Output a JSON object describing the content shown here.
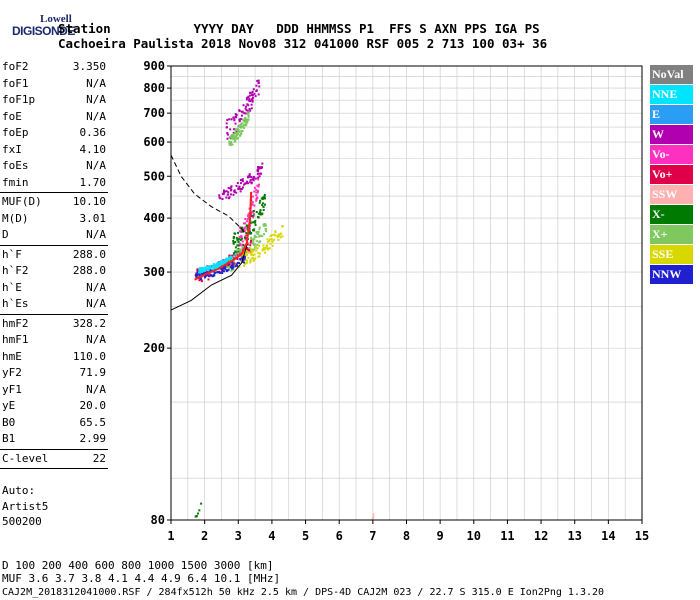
{
  "logo": {
    "line1": "Lowell",
    "line2": "DIGISONDE"
  },
  "header": {
    "line1": "Station           YYYY DAY   DDD HHMMSS P1  FFS S AXN PPS IGA PS",
    "line2": "Cachoeira Paulista 2018 Nov08 312 041000 RSF 005 2 713 100 03+ 36"
  },
  "params_group1": [
    {
      "name": "foF2",
      "value": "3.350"
    },
    {
      "name": "foF1",
      "value": "N/A"
    },
    {
      "name": "foF1p",
      "value": "N/A"
    },
    {
      "name": "foE",
      "value": "N/A"
    },
    {
      "name": "foEp",
      "value": "0.36"
    },
    {
      "name": "fxI",
      "value": "4.10"
    },
    {
      "name": "foEs",
      "value": "N/A"
    },
    {
      "name": "fmin",
      "value": "1.70"
    }
  ],
  "params_group2": [
    {
      "name": "MUF(D)",
      "value": "10.10"
    },
    {
      "name": "M(D)",
      "value": "3.01"
    },
    {
      "name": "D",
      "value": "N/A"
    }
  ],
  "params_group3": [
    {
      "name": "h`F",
      "value": "288.0"
    },
    {
      "name": "h`F2",
      "value": "288.0"
    },
    {
      "name": "h`E",
      "value": "N/A"
    },
    {
      "name": "h`Es",
      "value": "N/A"
    }
  ],
  "params_group4": [
    {
      "name": "hmF2",
      "value": "328.2"
    },
    {
      "name": "hmF1",
      "value": "N/A"
    },
    {
      "name": "hmE",
      "value": "110.0"
    },
    {
      "name": "yF2",
      "value": "71.9"
    },
    {
      "name": "yF1",
      "value": "N/A"
    },
    {
      "name": "yE",
      "value": "20.0"
    },
    {
      "name": "B0",
      "value": "65.5"
    },
    {
      "name": "B1",
      "value": "2.99"
    }
  ],
  "params_group5": [
    {
      "name": "C-level",
      "value": "22"
    }
  ],
  "auto_lines": [
    "Auto:",
    "Artist5",
    "500200"
  ],
  "legend": [
    {
      "label": "NoVal",
      "bg": "#808080",
      "fg": "#ffffff"
    },
    {
      "label": "NNE",
      "bg": "#00e5ff",
      "fg": "#ffffff"
    },
    {
      "label": "E",
      "bg": "#2a9df4",
      "fg": "#ffffff"
    },
    {
      "label": "W",
      "bg": "#b000b0",
      "fg": "#ffffff"
    },
    {
      "label": "Vo-",
      "bg": "#ff30c0",
      "fg": "#ffffff"
    },
    {
      "label": "Vo+",
      "bg": "#e0004a",
      "fg": "#ffffff"
    },
    {
      "label": "SSW",
      "bg": "#ffb0b0",
      "fg": "#ffffff"
    },
    {
      "label": "X-",
      "bg": "#007a00",
      "fg": "#ffffff"
    },
    {
      "label": "X+",
      "bg": "#7fc860",
      "fg": "#ffffff"
    },
    {
      "label": "SSE",
      "bg": "#d8d800",
      "fg": "#ffffff"
    },
    {
      "label": "NNW",
      "bg": "#2020d0",
      "fg": "#ffffff"
    }
  ],
  "chart_data": {
    "type": "scatter",
    "title": "",
    "xlabel": "",
    "ylabel": "",
    "xlim": [
      1,
      15
    ],
    "ylim": [
      80,
      900
    ],
    "y_scale": "log",
    "x_ticks": [
      "1",
      "2",
      "3",
      "4",
      "5",
      "6",
      "7",
      "8",
      "9",
      "10",
      "11",
      "12",
      "13",
      "14",
      "15"
    ],
    "y_ticks": [
      "80",
      "200",
      "300",
      "400",
      "500",
      "600",
      "700",
      "800",
      "900"
    ],
    "grid": true,
    "profile_solid": [
      [
        1.0,
        245
      ],
      [
        1.6,
        258
      ],
      [
        2.2,
        280
      ],
      [
        2.8,
        295
      ],
      [
        3.1,
        315
      ],
      [
        3.25,
        345
      ],
      [
        3.35,
        400
      ],
      [
        3.4,
        460
      ]
    ],
    "profile_dashed": [
      [
        1.0,
        560
      ],
      [
        1.3,
        500
      ],
      [
        1.7,
        455
      ],
      [
        2.2,
        425
      ],
      [
        2.7,
        405
      ],
      [
        3.1,
        378
      ],
      [
        3.25,
        365
      ]
    ],
    "trace_red": [
      [
        1.7,
        288
      ],
      [
        2.0,
        296
      ],
      [
        2.4,
        305
      ],
      [
        2.8,
        318
      ],
      [
        3.1,
        330
      ],
      [
        3.25,
        350
      ],
      [
        3.35,
        400
      ],
      [
        3.38,
        460
      ]
    ],
    "clusters": [
      {
        "color": "#2a9df4",
        "fmin": 1.7,
        "fmax": 3.0,
        "hmin": 290,
        "hmax": 340
      },
      {
        "color": "#b000b0",
        "fmin": 2.6,
        "fmax": 3.6,
        "hmin": 600,
        "hmax": 860
      },
      {
        "color": "#7fc860",
        "fmin": 2.7,
        "fmax": 3.3,
        "hmin": 590,
        "hmax": 720
      },
      {
        "color": "#b000b0",
        "fmin": 2.4,
        "fmax": 3.7,
        "hmin": 440,
        "hmax": 540
      },
      {
        "color": "#ff30c0",
        "fmin": 3.0,
        "fmax": 3.6,
        "hmin": 330,
        "hmax": 520
      },
      {
        "color": "#e0004a",
        "fmin": 1.7,
        "fmax": 3.4,
        "hmin": 285,
        "hmax": 360
      },
      {
        "color": "#007a00",
        "fmin": 2.8,
        "fmax": 3.8,
        "hmin": 330,
        "hmax": 470
      },
      {
        "color": "#7fc860",
        "fmin": 2.6,
        "fmax": 3.8,
        "hmin": 300,
        "hmax": 400
      },
      {
        "color": "#d8d800",
        "fmin": 3.0,
        "fmax": 4.3,
        "hmin": 310,
        "hmax": 390
      },
      {
        "color": "#2020d0",
        "fmin": 1.7,
        "fmax": 3.2,
        "hmin": 290,
        "hmax": 330
      },
      {
        "color": "#00e5ff",
        "fmin": 1.8,
        "fmax": 2.8,
        "hmin": 300,
        "hmax": 330
      },
      {
        "color": "#007a00",
        "fmin": 1.7,
        "fmax": 1.9,
        "hmin": 80,
        "hmax": 90
      },
      {
        "color": "#ffb0b0",
        "fmin": 6.95,
        "fmax": 7.0,
        "hmin": 80,
        "hmax": 85
      }
    ]
  },
  "footer": {
    "line1": "D     100  200  400  600  800 1000 1500 3000 [km]",
    "line2": "MUF   3.6  3.7  3.8  4.1  4.4  4.9  6.4 10.1 [MHz]",
    "line3": "CAJ2M_2018312041000.RSF / 284fx512h 50 kHz 2.5 km / DPS-4D CAJ2M 023 / 22.7 S 315.0 E Ion2Png 1.3.20"
  }
}
